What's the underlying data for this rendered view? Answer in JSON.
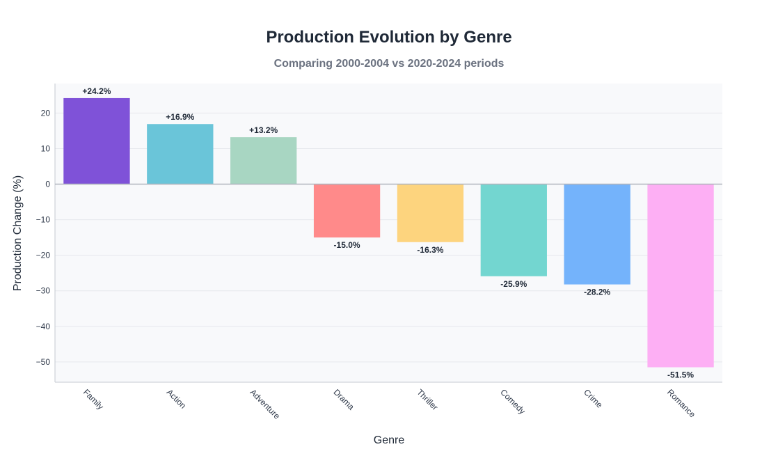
{
  "chart_data": {
    "type": "bar",
    "title": "Production Evolution by Genre",
    "subtitle": "Comparing 2000-2004 vs 2020-2024 periods",
    "xlabel": "Genre",
    "ylabel": "Production Change (%)",
    "categories": [
      "Family",
      "Action",
      "Adventure",
      "Drama",
      "Thriller",
      "Comedy",
      "Crime",
      "Romance"
    ],
    "values": [
      24.2,
      16.9,
      13.2,
      -15.0,
      -16.3,
      -25.9,
      -28.2,
      -51.5
    ],
    "data_labels": [
      "+24.2%",
      "+16.9%",
      "+13.2%",
      "-15.0%",
      "-16.3%",
      "-25.9%",
      "-28.2%",
      "-51.5%"
    ],
    "colors": [
      "#7f52d8",
      "#6ac5d9",
      "#a8d6c2",
      "#ff8a8a",
      "#fdd47e",
      "#73d6d0",
      "#74b3fb",
      "#fdaff4"
    ],
    "yticks": [
      20,
      10,
      0,
      -10,
      -20,
      -30,
      -40,
      -50
    ],
    "ytick_labels": [
      "20",
      "10",
      "0",
      "−10",
      "−20",
      "−30",
      "−40",
      "−50"
    ],
    "ylim": [
      -55.7,
      28.3
    ],
    "grid": true,
    "legend": "none"
  }
}
